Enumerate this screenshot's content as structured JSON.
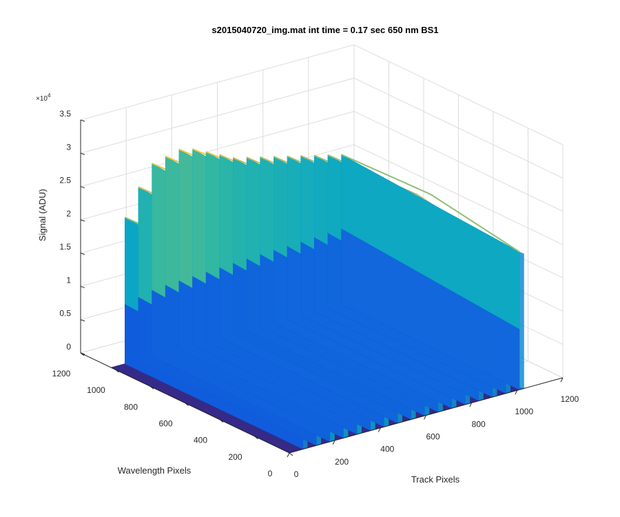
{
  "chart_data": {
    "type": "surface3d",
    "title": "s2015040720_img.mat int time = 0.17 sec  650 nm BS1",
    "xlabel": "Track Pixels",
    "ylabel": "Wavelength Pixels",
    "zlabel": "Signal (ADU)",
    "z_exponent_label": "×10",
    "z_exponent_power": "4",
    "xlim": [
      0,
      1200
    ],
    "ylim": [
      0,
      1200
    ],
    "zlim": [
      0,
      35000
    ],
    "x_ticks": [
      "0",
      "200",
      "400",
      "600",
      "800",
      "1000",
      "1200"
    ],
    "y_ticks": [
      "0",
      "200",
      "400",
      "600",
      "800",
      "1000",
      "1200"
    ],
    "z_ticks": [
      "0",
      "0.5",
      "1",
      "1.5",
      "2",
      "2.5",
      "3",
      "3.5"
    ],
    "grid": true,
    "colormap": [
      "#352a87",
      "#0f5cdd",
      "#1481d6",
      "#06a4ca",
      "#2eb7a4",
      "#87bf77",
      "#d1bb59",
      "#fec832",
      "#f9fb0e"
    ],
    "surface_extent": {
      "x": [
        0,
        1024
      ],
      "y": [
        0,
        1024
      ]
    },
    "stripe_count": 17,
    "stripes": [
      {
        "wavelength_pixel": 1024,
        "y_min": 0,
        "y_max": 1024,
        "peak": 22000,
        "base": 9000
      },
      {
        "wavelength_pixel": 1024,
        "y_min": 0,
        "y_max": 1024,
        "peak": 26000,
        "base": 9500
      },
      {
        "wavelength_pixel": 1024,
        "y_min": 0,
        "y_max": 1024,
        "peak": 29000,
        "base": 10000
      },
      {
        "wavelength_pixel": 1024,
        "y_min": 0,
        "y_max": 1024,
        "peak": 29500,
        "base": 10200
      },
      {
        "wavelength_pixel": 1024,
        "y_min": 0,
        "y_max": 1024,
        "peak": 30000,
        "base": 10300
      },
      {
        "wavelength_pixel": 1024,
        "y_min": 0,
        "y_max": 1024,
        "peak": 29500,
        "base": 10400
      },
      {
        "wavelength_pixel": 1024,
        "y_min": 0,
        "y_max": 1024,
        "peak": 28500,
        "base": 10500
      },
      {
        "wavelength_pixel": 1024,
        "y_min": 0,
        "y_max": 1024,
        "peak": 27500,
        "base": 10600
      },
      {
        "wavelength_pixel": 1024,
        "y_min": 0,
        "y_max": 1024,
        "peak": 26500,
        "base": 10700
      },
      {
        "wavelength_pixel": 1024,
        "y_min": 0,
        "y_max": 1024,
        "peak": 26000,
        "base": 10800
      },
      {
        "wavelength_pixel": 1024,
        "y_min": 0,
        "y_max": 1024,
        "peak": 25500,
        "base": 10900
      },
      {
        "wavelength_pixel": 1024,
        "y_min": 0,
        "y_max": 1024,
        "peak": 25000,
        "base": 11000
      },
      {
        "wavelength_pixel": 1024,
        "y_min": 0,
        "y_max": 1024,
        "peak": 24500,
        "base": 11000
      },
      {
        "wavelength_pixel": 1024,
        "y_min": 0,
        "y_max": 1024,
        "peak": 24000,
        "base": 11100
      },
      {
        "wavelength_pixel": 1024,
        "y_min": 0,
        "y_max": 1024,
        "peak": 23500,
        "base": 11200
      },
      {
        "wavelength_pixel": 1024,
        "y_min": 0,
        "y_max": 1024,
        "peak": 23000,
        "base": 11300
      },
      {
        "wavelength_pixel": 1024,
        "y_min": 0,
        "y_max": 1024,
        "peak": 22500,
        "base": 11400
      }
    ]
  }
}
